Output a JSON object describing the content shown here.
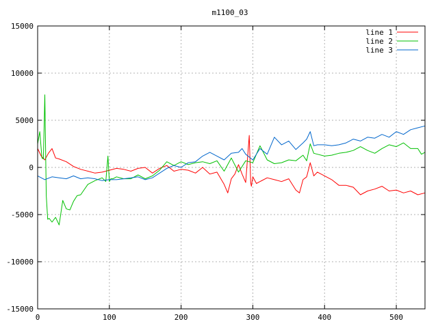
{
  "chart_data": {
    "type": "line",
    "title": "m1100_03",
    "xlabel": "",
    "ylabel": "",
    "xlim": [
      0,
      540
    ],
    "ylim": [
      -15000,
      15000
    ],
    "grid": true,
    "legend_position": "top-right",
    "x_ticks": [
      "0",
      "100",
      "200",
      "300",
      "400",
      "500"
    ],
    "x_tick_values": [
      0,
      100,
      200,
      300,
      400,
      500
    ],
    "y_ticks": [
      "15000",
      "10000",
      "5000",
      "0",
      "-5000",
      "-10000",
      "-15000"
    ],
    "y_tick_values": [
      15000,
      10000,
      5000,
      0,
      -5000,
      -10000,
      -15000
    ],
    "series": [
      {
        "name": "line 1",
        "color": "#ff0000",
        "x": [
          0,
          5,
          10,
          15,
          20,
          25,
          30,
          40,
          50,
          60,
          70,
          80,
          90,
          100,
          110,
          120,
          130,
          140,
          150,
          160,
          170,
          180,
          190,
          200,
          210,
          220,
          230,
          240,
          250,
          260,
          265,
          270,
          275,
          280,
          285,
          290,
          295,
          297,
          298,
          300,
          305,
          310,
          320,
          330,
          340,
          350,
          360,
          365,
          370,
          375,
          380,
          385,
          390,
          400,
          410,
          420,
          430,
          440,
          450,
          460,
          470,
          480,
          490,
          500,
          510,
          520,
          530,
          540
        ],
        "y": [
          2000,
          1200,
          800,
          1500,
          2000,
          1000,
          900,
          600,
          100,
          -200,
          -400,
          -600,
          -500,
          -300,
          -100,
          -200,
          -400,
          -100,
          0,
          -600,
          -100,
          200,
          -400,
          -200,
          -300,
          -600,
          0,
          -700,
          -500,
          -1800,
          -2700,
          -1200,
          -700,
          300,
          -700,
          -1600,
          3400,
          -1600,
          -2000,
          -1000,
          -1700,
          -1500,
          -1100,
          -1300,
          -1500,
          -1200,
          -2400,
          -2700,
          -1300,
          -1000,
          500,
          -900,
          -500,
          -900,
          -1300,
          -1900,
          -1900,
          -2100,
          -2900,
          -2500,
          -2300,
          -2000,
          -2500,
          -2400,
          -2700,
          -2500,
          -2900,
          -2700
        ]
      },
      {
        "name": "line 2",
        "color": "#00c000",
        "x": [
          0,
          3,
          6,
          8,
          10,
          12,
          14,
          16,
          20,
          25,
          30,
          35,
          40,
          45,
          50,
          55,
          60,
          70,
          80,
          90,
          95,
          98,
          100,
          102,
          105,
          110,
          120,
          130,
          140,
          150,
          160,
          170,
          180,
          190,
          200,
          210,
          220,
          230,
          240,
          250,
          260,
          270,
          280,
          290,
          300,
          310,
          320,
          330,
          340,
          350,
          360,
          370,
          375,
          380,
          385,
          390,
          400,
          410,
          420,
          430,
          440,
          450,
          460,
          470,
          480,
          490,
          500,
          510,
          520,
          530,
          535,
          540
        ],
        "y": [
          2500,
          3800,
          1000,
          900,
          7700,
          -3000,
          -5500,
          -5400,
          -5800,
          -5300,
          -6100,
          -3500,
          -4400,
          -4500,
          -3600,
          -3000,
          -2900,
          -1800,
          -1400,
          -1100,
          -1500,
          1200,
          -1500,
          -1200,
          -1200,
          -1000,
          -1200,
          -1200,
          -800,
          -1200,
          -900,
          -300,
          600,
          200,
          600,
          300,
          500,
          600,
          400,
          700,
          -400,
          1000,
          -500,
          700,
          500,
          2300,
          800,
          400,
          500,
          800,
          700,
          1300,
          700,
          2500,
          1500,
          1400,
          1200,
          1300,
          1500,
          1600,
          1800,
          2200,
          1800,
          1500,
          2000,
          2400,
          2200,
          2600,
          2000,
          2000,
          1400,
          1600
        ]
      },
      {
        "name": "line 3",
        "color": "#0066cc",
        "x": [
          0,
          10,
          20,
          30,
          40,
          50,
          60,
          70,
          80,
          90,
          100,
          110,
          120,
          130,
          140,
          150,
          160,
          170,
          180,
          190,
          200,
          210,
          220,
          230,
          240,
          250,
          260,
          270,
          280,
          285,
          290,
          300,
          310,
          320,
          330,
          340,
          350,
          360,
          370,
          375,
          380,
          385,
          390,
          400,
          410,
          420,
          430,
          440,
          450,
          460,
          470,
          480,
          490,
          500,
          510,
          520,
          530,
          540
        ],
        "y": [
          -900,
          -1300,
          -1000,
          -1100,
          -1200,
          -900,
          -1200,
          -1100,
          -1200,
          -1400,
          -1300,
          -1300,
          -1200,
          -1100,
          -1000,
          -1300,
          -1100,
          -600,
          -100,
          200,
          0,
          500,
          600,
          1200,
          1600,
          1200,
          800,
          1500,
          1600,
          2000,
          1400,
          800,
          2000,
          1400,
          3200,
          2400,
          2800,
          1900,
          2600,
          3000,
          3800,
          2300,
          2400,
          2400,
          2300,
          2400,
          2600,
          3000,
          2800,
          3200,
          3100,
          3500,
          3200,
          3800,
          3500,
          4000,
          4200,
          4400
        ]
      }
    ]
  }
}
